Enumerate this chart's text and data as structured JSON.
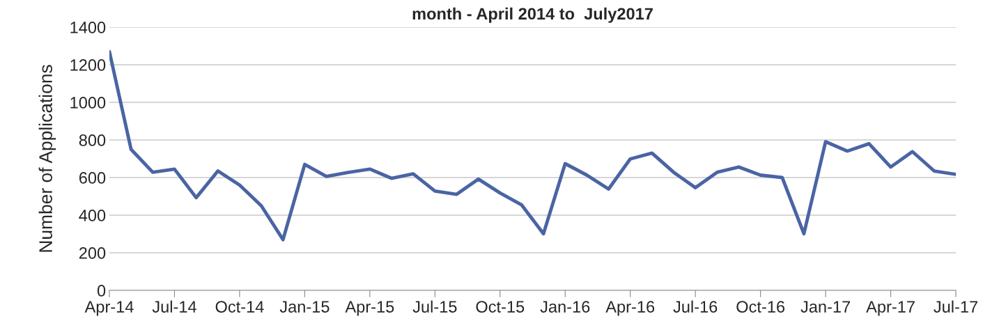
{
  "chart_data": {
    "type": "line",
    "title": "month - April 2014 to  July2017",
    "ylabel": "Number of Applications",
    "categories": [
      "Apr-14",
      null,
      null,
      "Jul-14",
      null,
      null,
      "Oct-14",
      null,
      null,
      "Jan-15",
      null,
      null,
      "Apr-15",
      null,
      null,
      "Jul-15",
      null,
      null,
      "Oct-15",
      null,
      null,
      "Jan-16",
      null,
      null,
      "Apr-16",
      null,
      null,
      "Jul-16",
      null,
      null,
      "Oct-16",
      null,
      null,
      "Jan-17",
      null,
      null,
      "Apr-17",
      null,
      null,
      "Jul-17"
    ],
    "series": [
      {
        "color": "#4a64a4",
        "values": [
          1270,
          750,
          628,
          645,
          493,
          635,
          560,
          450,
          270,
          670,
          606,
          627,
          645,
          596,
          620,
          528,
          511,
          592,
          518,
          454,
          301,
          674,
          613,
          539,
          699,
          730,
          628,
          546,
          628,
          656,
          613,
          600,
          301,
          791,
          741,
          780,
          656,
          738,
          635,
          617
        ]
      }
    ],
    "ylim": [
      0,
      1400
    ],
    "yticks": [
      0,
      200,
      400,
      600,
      800,
      1000,
      1200,
      1400
    ],
    "grid": "y",
    "legend": false,
    "marker": "none",
    "line_style": "solid"
  }
}
